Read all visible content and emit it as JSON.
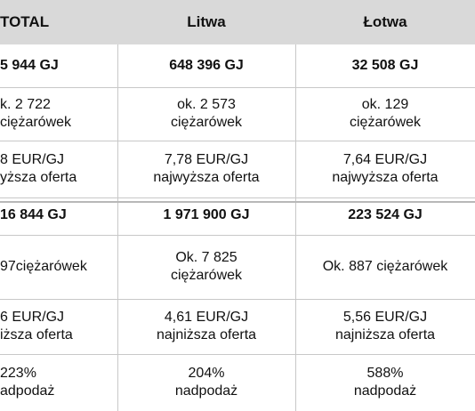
{
  "header": {
    "col0": "TOTAL",
    "col1": "Litwa",
    "col2": "Łotwa"
  },
  "rows": [
    {
      "c0": [
        "5 944 GJ"
      ],
      "c1": [
        "648 396 GJ"
      ],
      "c2": [
        "32 508 GJ"
      ],
      "bold": true
    },
    {
      "c0": [
        "k. 2 722",
        "ciężarówek"
      ],
      "c1": [
        "ok. 2 573",
        "ciężarówek"
      ],
      "c2": [
        "ok. 129",
        "ciężarówek"
      ]
    },
    {
      "c0": [
        "8 EUR/GJ",
        "yższa oferta"
      ],
      "c1": [
        "7,78 EUR/GJ",
        "najwyższa oferta"
      ],
      "c2": [
        "7,64 EUR/GJ",
        "najwyższa oferta"
      ]
    },
    {
      "c0": [
        "16 844 GJ"
      ],
      "c1": [
        "1 971 900 GJ"
      ],
      "c2": [
        "223 524 GJ"
      ],
      "bold": true
    },
    {
      "c0": [
        "97ciężarówek"
      ],
      "c1": [
        "Ok. 7 825",
        "ciężarówek"
      ],
      "c2": [
        "Ok. 887 ciężarówek"
      ]
    },
    {
      "c0": [
        "6 EUR/GJ",
        "iższa oferta"
      ],
      "c1": [
        "4,61 EUR/GJ",
        "najniższa oferta"
      ],
      "c2": [
        "5,56 EUR/GJ",
        "najniższa oferta"
      ]
    },
    {
      "c0": [
        "223%",
        "adpodaż"
      ],
      "c1": [
        "204%",
        "nadpodaż"
      ],
      "c2": [
        "588%",
        "nadpodaż"
      ]
    }
  ]
}
